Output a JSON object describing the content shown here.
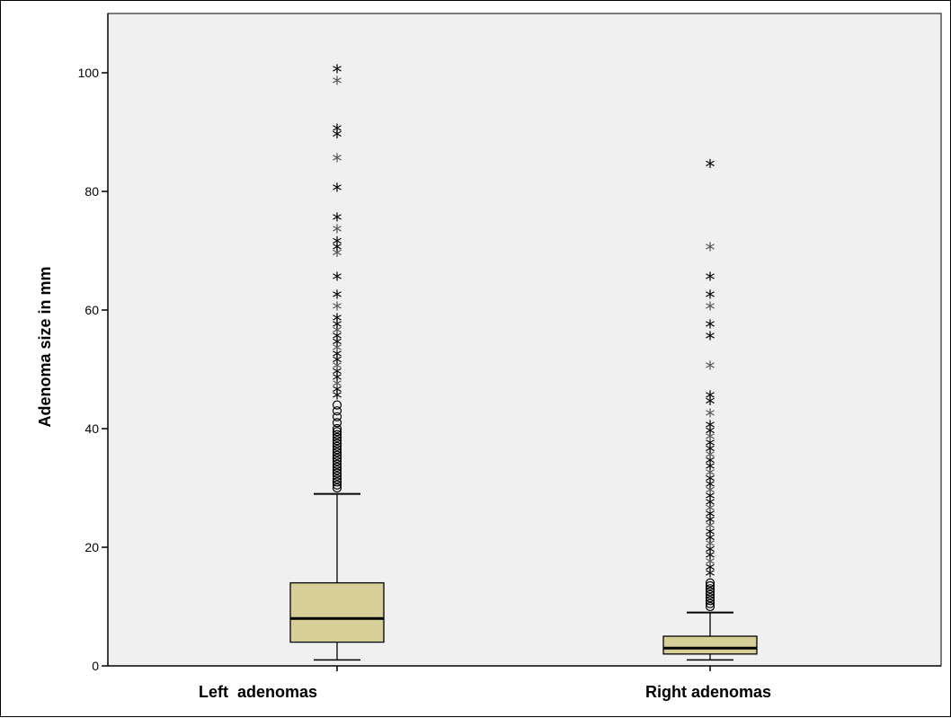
{
  "chart_data": {
    "type": "boxplot",
    "ylabel": "Adenoma size in mm",
    "xlabel": "",
    "ylim": [
      0,
      110
    ],
    "yticks": [
      0,
      20,
      40,
      60,
      80,
      100
    ],
    "grid": false,
    "colors": {
      "plot_bg": "#f0f0f0",
      "box_fill": "#d7cf98",
      "axis": "#000000"
    },
    "categories": [
      "Left  adenomas",
      "Right adenomas"
    ],
    "boxes": [
      {
        "category": "Left  adenomas",
        "min": 1,
        "q1": 4,
        "median": 8,
        "q3": 14,
        "max": 29,
        "outliers_circle": [
          30,
          30.5,
          31,
          31.5,
          32,
          32.5,
          33,
          33.5,
          34,
          34.5,
          35,
          35.5,
          36,
          36.5,
          37,
          37.5,
          38,
          38.5,
          39,
          39.5,
          40,
          41,
          42,
          43,
          44
        ],
        "outliers_star": [
          45,
          46,
          47,
          48,
          49,
          50,
          51,
          52,
          53,
          54,
          55,
          56,
          57,
          58,
          60,
          62,
          65,
          69,
          70,
          71,
          73,
          75,
          80,
          85,
          89,
          90,
          98,
          100
        ]
      },
      {
        "category": "Right adenomas",
        "min": 1,
        "q1": 2,
        "median": 3,
        "q3": 5,
        "max": 9,
        "outliers_circle": [
          10,
          10.5,
          11,
          11.5,
          12,
          12.5,
          13,
          13.5,
          14
        ],
        "outliers_star": [
          15,
          16,
          17,
          18,
          19,
          20,
          21,
          22,
          23,
          24,
          25,
          26,
          27,
          28,
          29,
          30,
          31,
          32,
          33,
          34,
          35,
          36,
          37,
          38,
          39,
          40,
          42,
          44,
          45,
          50,
          55,
          57,
          60,
          62,
          65,
          70,
          84
        ]
      }
    ]
  }
}
